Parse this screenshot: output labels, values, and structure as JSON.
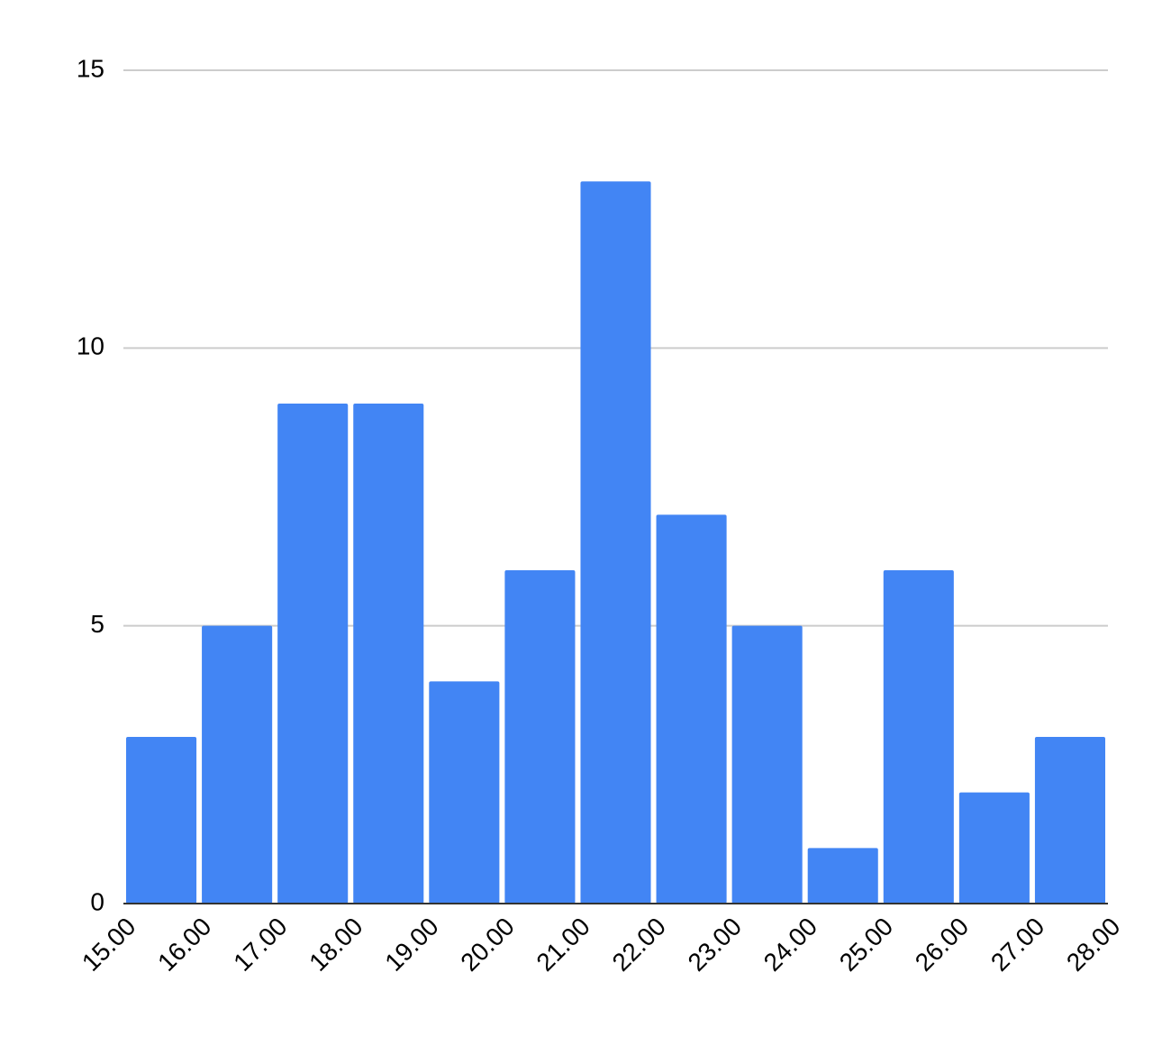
{
  "chart_data": {
    "type": "histogram",
    "bins": [
      15,
      16,
      17,
      18,
      19,
      20,
      21,
      22,
      23,
      24,
      25,
      26,
      27,
      28
    ],
    "values": [
      3,
      5,
      9,
      9,
      4,
      6,
      13,
      7,
      5,
      1,
      6,
      2,
      3
    ],
    "color": "#4285f4",
    "xlim": [
      15,
      28
    ],
    "xticks": [
      {
        "value": 15,
        "label": "15.00"
      },
      {
        "value": 16,
        "label": "16.00"
      },
      {
        "value": 17,
        "label": "17.00"
      },
      {
        "value": 18,
        "label": "18.00"
      },
      {
        "value": 19,
        "label": "19.00"
      },
      {
        "value": 20,
        "label": "20.00"
      },
      {
        "value": 21,
        "label": "21.00"
      },
      {
        "value": 22,
        "label": "22.00"
      },
      {
        "value": 23,
        "label": "23.00"
      },
      {
        "value": 24,
        "label": "24.00"
      },
      {
        "value": 25,
        "label": "25.00"
      },
      {
        "value": 26,
        "label": "26.00"
      },
      {
        "value": 27,
        "label": "27.00"
      },
      {
        "value": 28,
        "label": "28.00"
      }
    ],
    "ylim": [
      0,
      15
    ],
    "yticks": [
      0,
      5,
      10,
      15
    ],
    "grid": true
  }
}
